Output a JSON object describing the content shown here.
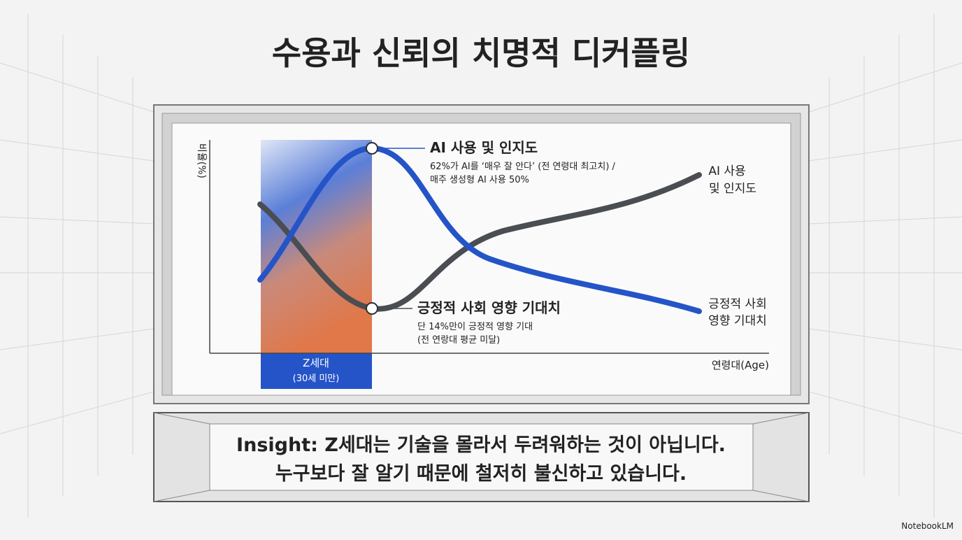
{
  "title": "수용과 신뢰의 치명적 디커플링",
  "chart": {
    "y_axis_label": "비율(%)",
    "x_axis_label": "연령대(Age)",
    "band": {
      "label": "Z세대",
      "sublabel": "(30세 미만)"
    },
    "callouts": [
      {
        "title": "AI 사용 및 인지도",
        "lines": [
          "62%가 AI를 ‘매우 잘 안다’ (전 연령대 최고치) /",
          "매주 생성형 AI 사용 50%"
        ]
      },
      {
        "title": "긍정적 사회 영향 기대치",
        "lines": [
          "단 14%만이 긍정적 영향 기대",
          "(전 연랑대 평균 미달)"
        ]
      }
    ],
    "end_labels": [
      [
        "AI 사용",
        "및 인지도"
      ],
      [
        "긍정적 사회",
        "영향 기대치"
      ]
    ]
  },
  "insight": [
    "Insight: Z세대는 기술을 몰라서 두려워하는 것이 아닙니다.",
    "누구보다 잘 알기 때문에 철저히 불신하고 있습니다."
  ],
  "brand": "NotebookLM"
}
